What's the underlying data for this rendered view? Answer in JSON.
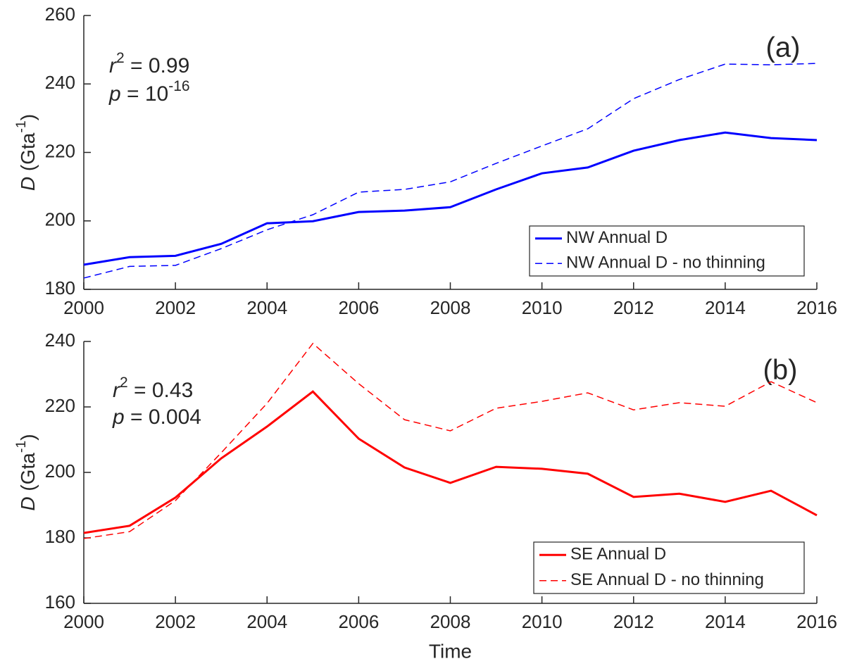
{
  "chart_data": [
    {
      "type": "line",
      "panel_label": "(a)",
      "ylabel": [
        "D",
        " (Gta",
        "-1",
        ")"
      ],
      "annotations": [
        [
          "r",
          "2",
          " = 0.99"
        ],
        [
          "p",
          " = 10",
          "-16"
        ]
      ],
      "x": [
        2000,
        2001,
        2002,
        2003,
        2004,
        2005,
        2006,
        2007,
        2008,
        2009,
        2010,
        2011,
        2012,
        2013,
        2014,
        2015,
        2016
      ],
      "xlim": [
        2000,
        2016
      ],
      "xticks": [
        2000,
        2002,
        2004,
        2006,
        2008,
        2010,
        2012,
        2014,
        2016
      ],
      "ylim": [
        180,
        260
      ],
      "yticks": [
        180,
        200,
        220,
        240,
        260
      ],
      "legend": "lower right",
      "series": [
        {
          "name": "NW Annual D",
          "color": "#0000ff",
          "line_style": "solid",
          "values": [
            187.2,
            189.4,
            189.8,
            193.3,
            199.3,
            199.9,
            202.6,
            203.0,
            204.0,
            209.2,
            213.9,
            215.6,
            220.5,
            223.6,
            225.8,
            224.2,
            223.6
          ]
        },
        {
          "name": "NW Annual D - no thinning",
          "color": "#0000ff",
          "line_style": "dashed",
          "values": [
            183.3,
            186.7,
            187.0,
            191.9,
            197.4,
            201.8,
            208.4,
            209.2,
            211.4,
            216.8,
            221.9,
            226.9,
            235.7,
            241.3,
            245.8,
            245.6,
            246.0
          ]
        }
      ]
    },
    {
      "type": "line",
      "panel_label": "(b)",
      "xlabel": "Time",
      "ylabel": [
        "D",
        " (Gta",
        "-1",
        ")"
      ],
      "annotations": [
        [
          "r",
          "2",
          " = 0.43"
        ],
        [
          "p",
          " = 0.004"
        ]
      ],
      "x": [
        2000,
        2001,
        2002,
        2003,
        2004,
        2005,
        2006,
        2007,
        2008,
        2009,
        2010,
        2011,
        2012,
        2013,
        2014,
        2015,
        2016
      ],
      "xlim": [
        2000,
        2016
      ],
      "xticks": [
        2000,
        2002,
        2004,
        2006,
        2008,
        2010,
        2012,
        2014,
        2016
      ],
      "ylim": [
        160,
        240
      ],
      "yticks": [
        160,
        180,
        200,
        220,
        240
      ],
      "legend": "lower right",
      "series": [
        {
          "name": "SE Annual D",
          "color": "#ff0000",
          "line_style": "solid",
          "values": [
            181.5,
            183.7,
            192.3,
            204.3,
            214.0,
            224.7,
            210.3,
            201.5,
            196.8,
            201.7,
            201.1,
            199.6,
            192.5,
            193.5,
            191.0,
            194.4,
            186.9
          ]
        },
        {
          "name": "SE Annual D - no thinning",
          "color": "#ff0000",
          "line_style": "dashed",
          "values": [
            179.8,
            181.9,
            191.4,
            206.0,
            221.1,
            239.4,
            227.1,
            216.1,
            212.7,
            219.6,
            221.7,
            224.3,
            219.1,
            221.3,
            220.2,
            227.7,
            221.3
          ]
        }
      ]
    }
  ]
}
